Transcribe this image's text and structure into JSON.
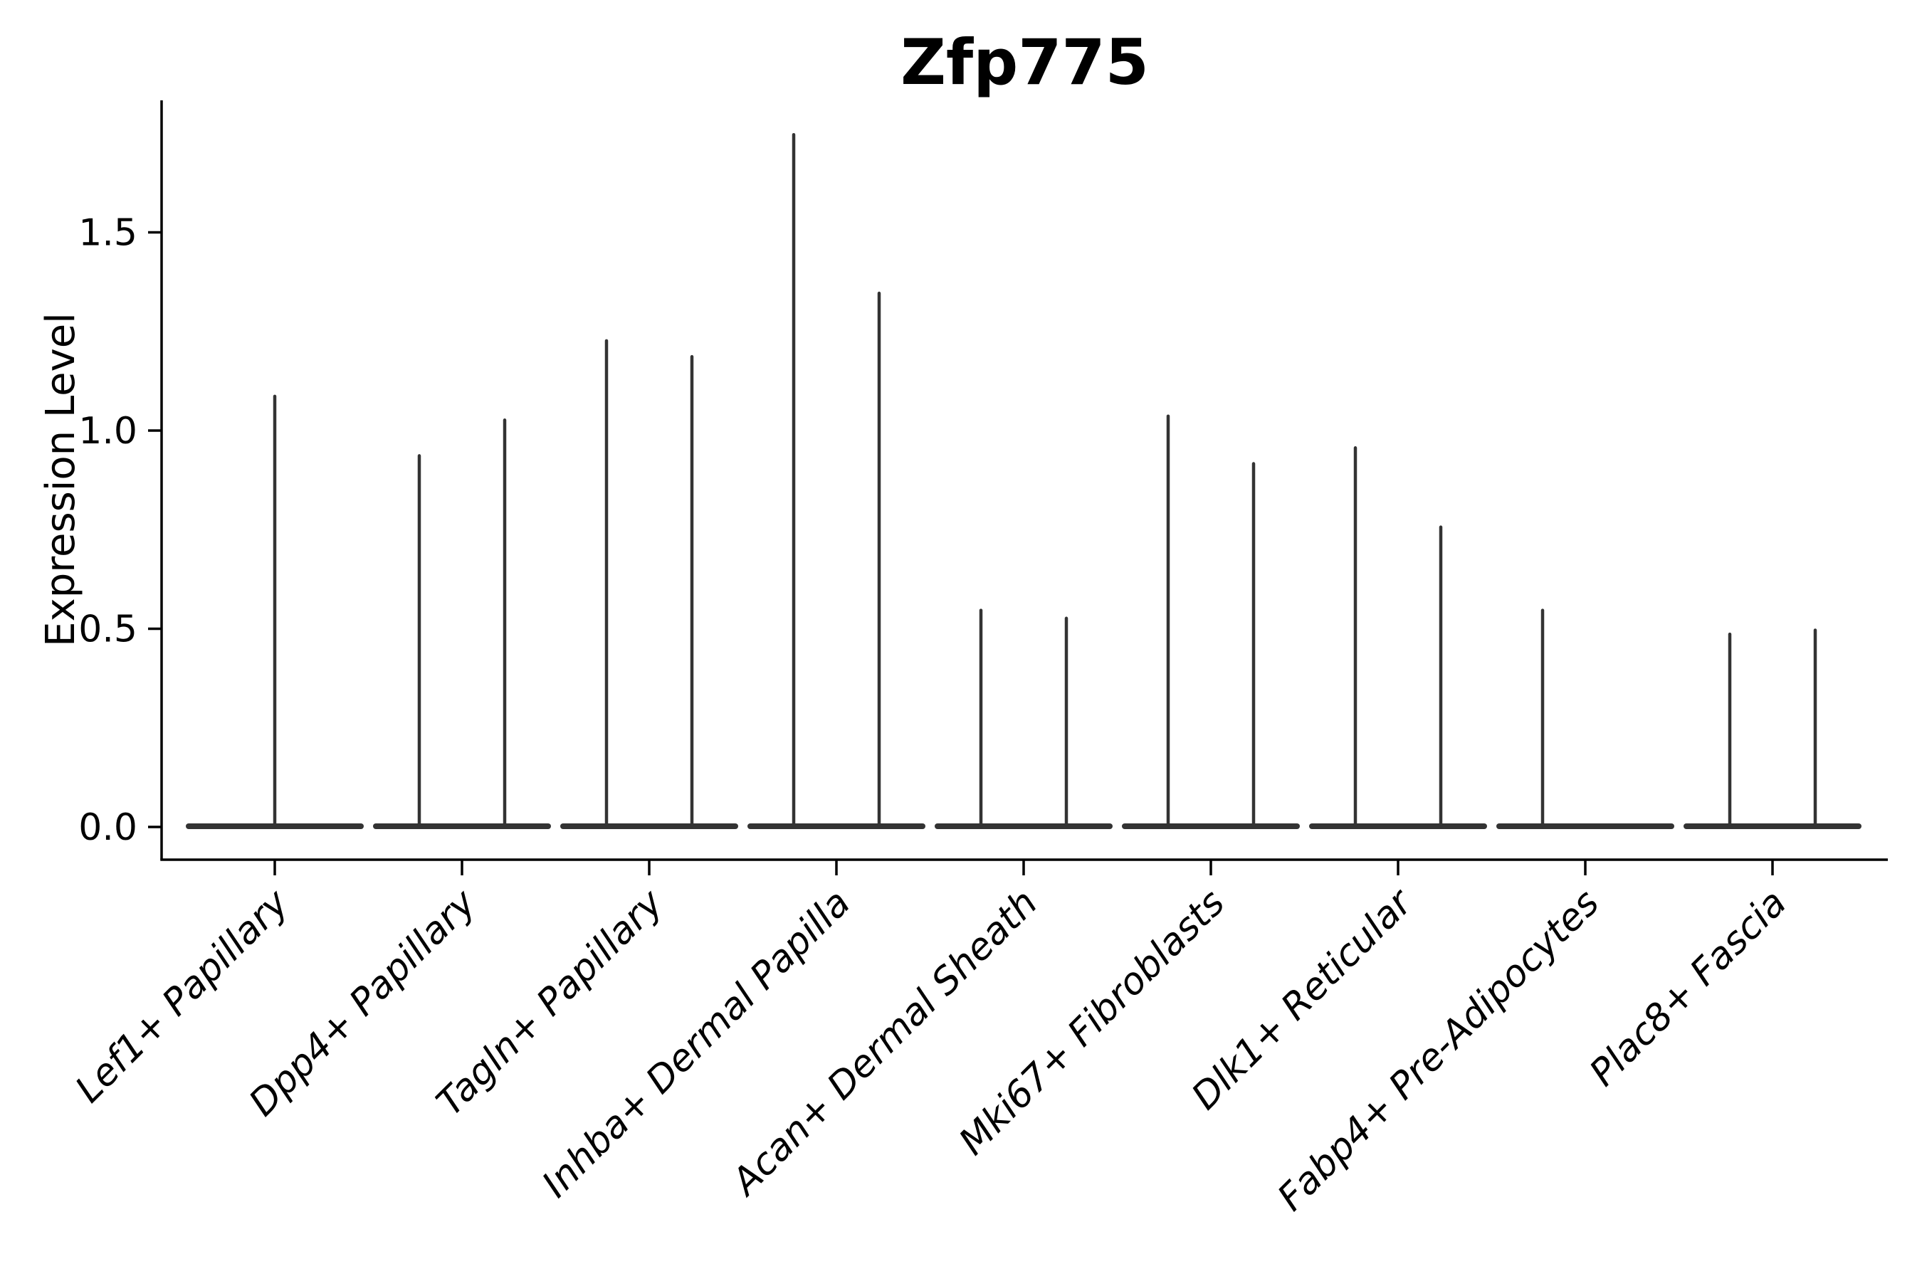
{
  "chart_data": {
    "type": "violin",
    "title": "Zfp775",
    "xlabel": "",
    "ylabel": "Expression Level",
    "categories": [
      "Lef1+ Papillary",
      "Dpp4+ Papillary",
      "Tagln+ Papillary",
      "Inhba+ Dermal Papilla",
      "Acan+ Dermal Sheath",
      "Mki67+ Fibroblasts",
      "Dlk1+ Reticular",
      "Fabp4+ Pre-Adipocytes",
      "Plac8+ Fascia"
    ],
    "yticks": {
      "values": [
        0.0,
        0.5,
        1.0,
        1.5
      ],
      "labels": [
        "0.0",
        "0.5",
        "1.0",
        "1.5"
      ]
    },
    "ylim": [
      -0.08,
      1.83
    ],
    "grid": false,
    "legend": null,
    "baseline_value": 0.0,
    "violins": [
      {
        "category": "Lef1+ Papillary",
        "spikes": [
          {
            "slot": "center",
            "max": 1.09
          }
        ]
      },
      {
        "category": "Dpp4+ Papillary",
        "spikes": [
          {
            "slot": "left",
            "max": 0.94
          },
          {
            "slot": "right",
            "max": 1.03
          }
        ]
      },
      {
        "category": "Tagln+ Papillary",
        "spikes": [
          {
            "slot": "left",
            "max": 1.23
          },
          {
            "slot": "right",
            "max": 1.19
          }
        ]
      },
      {
        "category": "Inhba+ Dermal Papilla",
        "spikes": [
          {
            "slot": "left",
            "max": 1.75
          },
          {
            "slot": "right",
            "max": 1.35
          }
        ]
      },
      {
        "category": "Acan+ Dermal Sheath",
        "spikes": [
          {
            "slot": "left",
            "max": 0.55
          },
          {
            "slot": "right",
            "max": 0.53
          }
        ]
      },
      {
        "category": "Mki67+ Fibroblasts",
        "spikes": [
          {
            "slot": "left",
            "max": 1.04
          },
          {
            "slot": "right",
            "max": 0.92
          }
        ]
      },
      {
        "category": "Dlk1+ Reticular",
        "spikes": [
          {
            "slot": "left",
            "max": 0.96
          },
          {
            "slot": "right",
            "max": 0.76
          }
        ]
      },
      {
        "category": "Fabp4+ Pre-Adipocytes",
        "spikes": [
          {
            "slot": "left",
            "max": 0.55
          },
          {
            "slot": "right",
            "max": 0.0
          }
        ]
      },
      {
        "category": "Plac8+ Fascia",
        "spikes": [
          {
            "slot": "left",
            "max": 0.49
          },
          {
            "slot": "right",
            "max": 0.5
          }
        ]
      }
    ]
  },
  "colors": {
    "violin_stroke": "#333333",
    "axis": "#000000",
    "text": "#000000",
    "background": "#ffffff"
  }
}
